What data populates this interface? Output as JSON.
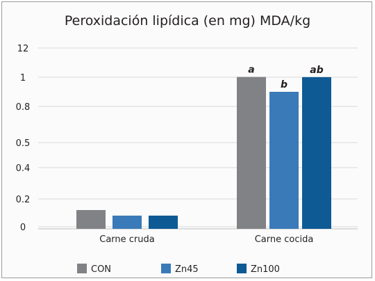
{
  "chart_data": {
    "type": "bar",
    "title": "Peroxidación lipídica (en mg) MDA/kg",
    "xlabel": "",
    "ylabel": "",
    "y_tick_labels": [
      "0",
      "0.2",
      "0.4",
      "0.5",
      "0.8",
      "1",
      "12"
    ],
    "categories": [
      "Carne cruda",
      "Carne cocida"
    ],
    "series": [
      {
        "name": "CON",
        "color": "#808285",
        "values": [
          0.12,
          1.1
        ],
        "labels": [
          "",
          "a"
        ]
      },
      {
        "name": "Zn45",
        "color": "#3a7ab8",
        "values": [
          0.08,
          0.9
        ],
        "labels": [
          "",
          "b"
        ]
      },
      {
        "name": "Zn100",
        "color": "#0e5a94",
        "values": [
          0.08,
          1.03
        ],
        "labels": [
          "",
          "ab"
        ]
      }
    ],
    "grid": "horizontal",
    "legend_position": "bottom"
  }
}
